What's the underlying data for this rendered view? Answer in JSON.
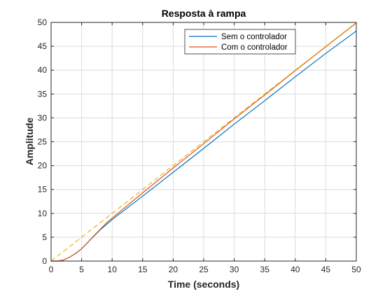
{
  "chart_data": {
    "type": "line",
    "title": "Resposta à rampa",
    "xlabel": "Time (seconds)",
    "ylabel": "Amplitude",
    "xlim": [
      0,
      50
    ],
    "ylim": [
      0,
      50
    ],
    "xticks": [
      0,
      5,
      10,
      15,
      20,
      25,
      30,
      35,
      40,
      45,
      50
    ],
    "yticks": [
      0,
      5,
      10,
      15,
      20,
      25,
      30,
      35,
      40,
      45,
      50
    ],
    "grid": true,
    "legend_position": "top-right",
    "series": [
      {
        "name": "Sem o controlador",
        "color": "#0072bd",
        "style": "solid",
        "x": [
          0,
          1,
          2,
          3,
          4,
          5,
          6,
          7,
          8,
          9,
          10,
          15,
          20,
          25,
          30,
          35,
          40,
          45,
          50
        ],
        "y": [
          0,
          0.0,
          0.2,
          0.8,
          1.6,
          2.6,
          3.9,
          5.2,
          6.5,
          7.6,
          8.7,
          13.6,
          18.6,
          23.6,
          28.7,
          33.6,
          38.6,
          43.5,
          48.2
        ]
      },
      {
        "name": "Com o controlador",
        "color": "#d95319",
        "style": "solid",
        "x": [
          0,
          1,
          2,
          3,
          4,
          5,
          6,
          7,
          8,
          9,
          10,
          15,
          20,
          25,
          30,
          35,
          40,
          45,
          50
        ],
        "y": [
          0,
          0.0,
          0.2,
          0.8,
          1.6,
          2.6,
          3.9,
          5.3,
          6.6,
          7.9,
          9.0,
          14.3,
          19.5,
          24.6,
          29.8,
          34.8,
          39.9,
          44.9,
          49.9
        ]
      },
      {
        "name": "",
        "color": "#edb120",
        "style": "dashed",
        "x": [
          0,
          50
        ],
        "y": [
          0,
          50
        ]
      }
    ]
  }
}
